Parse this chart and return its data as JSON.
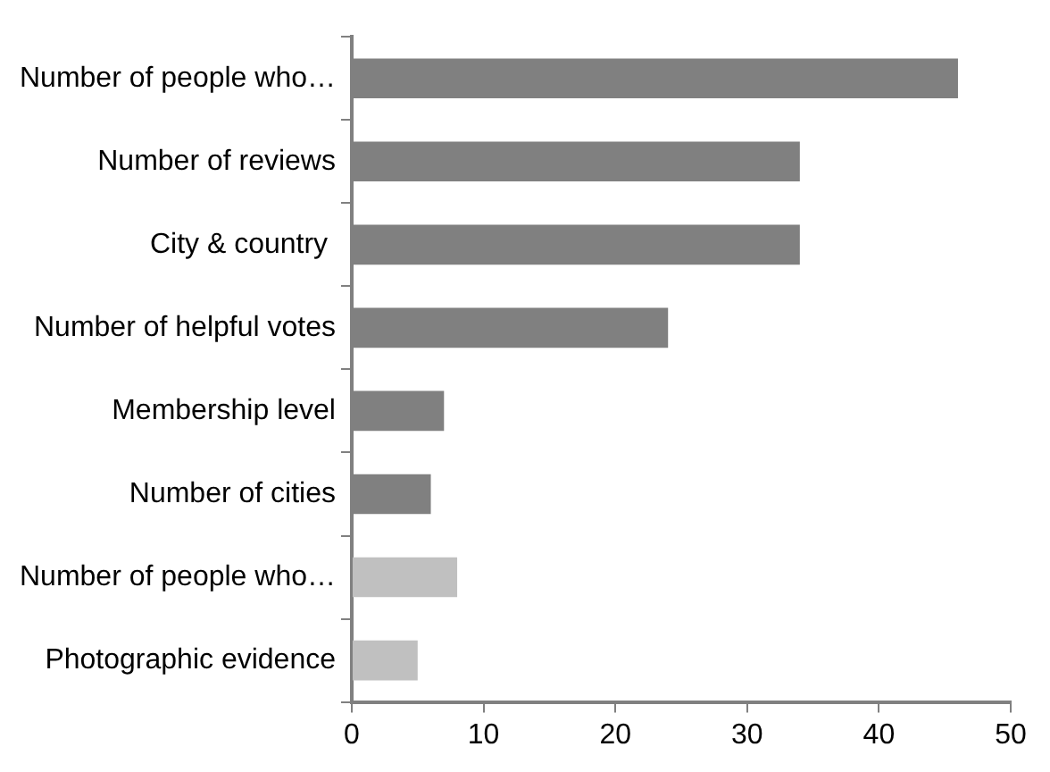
{
  "chart_data": {
    "type": "bar",
    "orientation": "horizontal",
    "categories": [
      "Number of people who…",
      "Number of reviews",
      "City & country ",
      "Number of helpful votes",
      "Membership level",
      "Number of cities",
      "Number of people who…",
      "Photographic evidence"
    ],
    "values": [
      46,
      34,
      34,
      24,
      7,
      6,
      8,
      5
    ],
    "colors": [
      "#808080",
      "#808080",
      "#808080",
      "#808080",
      "#808080",
      "#808080",
      "#c0c0c0",
      "#c0c0c0"
    ],
    "xlim": [
      0,
      50
    ],
    "xticks": [
      0,
      10,
      20,
      30,
      40,
      50
    ],
    "grid": false,
    "legend": false
  }
}
